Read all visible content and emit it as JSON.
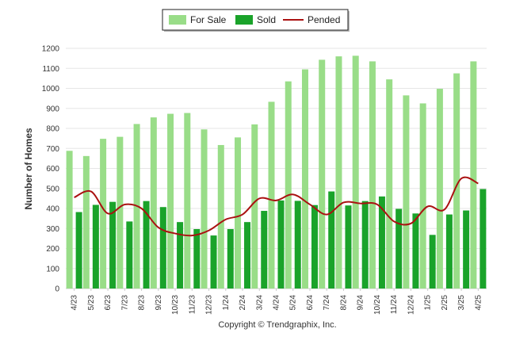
{
  "chart_data": {
    "type": "bar",
    "title": "",
    "xlabel": "",
    "ylabel": "Number of Homes",
    "ylim": [
      0,
      1200
    ],
    "yticks": [
      0,
      100,
      200,
      300,
      400,
      500,
      600,
      700,
      800,
      900,
      1000,
      1100,
      1200
    ],
    "grid": true,
    "legend_position": "top-center",
    "categories": [
      "4/23",
      "5/23",
      "6/23",
      "7/23",
      "8/23",
      "9/23",
      "10/23",
      "11/23",
      "12/23",
      "1/24",
      "2/24",
      "3/24",
      "4/24",
      "5/24",
      "6/24",
      "7/24",
      "8/24",
      "9/24",
      "10/24",
      "11/24",
      "12/24",
      "1/25",
      "2/25",
      "3/25",
      "4/25"
    ],
    "series": [
      {
        "name": "For Sale",
        "type": "bar",
        "color": "#99dd88",
        "values": [
          688,
          662,
          748,
          758,
          822,
          855,
          873,
          877,
          795,
          717,
          755,
          820,
          933,
          1035,
          1095,
          1143,
          1160,
          1163,
          1135,
          1045,
          965,
          925,
          998,
          1075,
          1135
        ]
      },
      {
        "name": "Sold",
        "type": "bar",
        "color": "#1aa32a",
        "values": [
          382,
          418,
          433,
          335,
          437,
          407,
          332,
          297,
          265,
          297,
          332,
          388,
          440,
          438,
          417,
          485,
          415,
          437,
          460,
          398,
          375,
          268,
          370,
          390,
          497
        ]
      },
      {
        "name": "Pended",
        "type": "line",
        "color": "#aa1111",
        "values": [
          455,
          485,
          375,
          420,
          400,
          305,
          275,
          265,
          290,
          345,
          370,
          450,
          440,
          470,
          420,
          370,
          430,
          425,
          420,
          335,
          325,
          410,
          395,
          550,
          525
        ]
      }
    ],
    "footer": "Copyright © Trendgraphix, Inc."
  }
}
